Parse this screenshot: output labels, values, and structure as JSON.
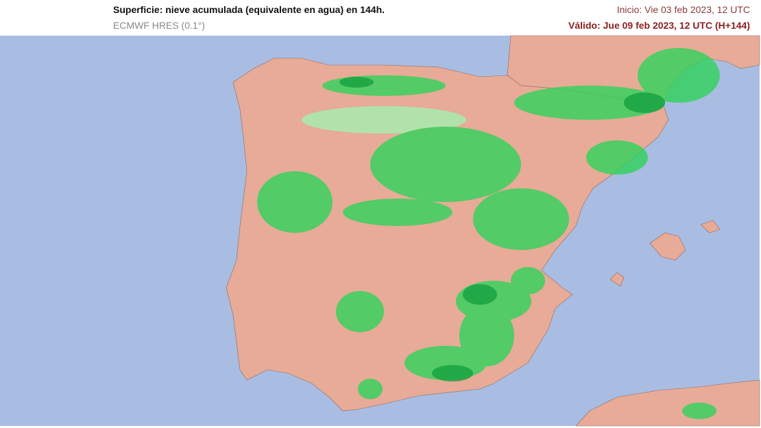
{
  "header": {
    "title": "Superficie: nieve acumulada (equivalente en agua) en 144h.",
    "subtitle": "ECMWF HRES (0.1°)",
    "init": "Inicio: Vie 03 feb 2023, 12 UTC",
    "valid": "Válido: Jue 09 feb 2023, 12 UTC (H+144)"
  }
}
